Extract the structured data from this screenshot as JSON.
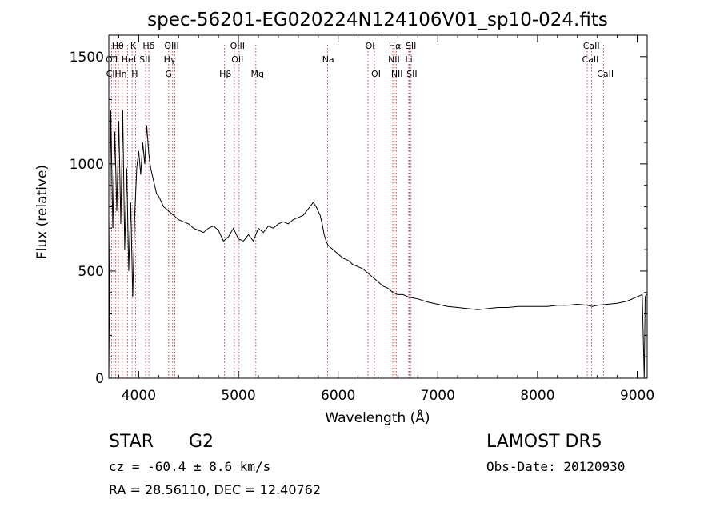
{
  "chart_data": {
    "type": "line",
    "title": "spec-56201-EG020224N124106V01_sp10-024.fits",
    "xlabel": "Wavelength (Å)",
    "ylabel": "Flux (relative)",
    "xlim": [
      3700,
      9100
    ],
    "ylim": [
      0,
      1600
    ],
    "xticks": [
      4000,
      5000,
      6000,
      7000,
      8000,
      9000
    ],
    "yticks": [
      0,
      500,
      1000,
      1500
    ],
    "grid": false,
    "series": [
      {
        "x": [
          3700,
          3720,
          3740,
          3760,
          3780,
          3800,
          3820,
          3840,
          3860,
          3880,
          3900,
          3920,
          3940,
          3960,
          3980,
          4000,
          4020,
          4040,
          4060,
          4080,
          4100,
          4120,
          4140,
          4160,
          4180,
          4200,
          4250,
          4300,
          4350,
          4400,
          4450,
          4500,
          4550,
          4600,
          4650,
          4700,
          4750,
          4800,
          4850,
          4900,
          4950,
          5000,
          5050,
          5100,
          5150,
          5200,
          5250,
          5300,
          5350,
          5400,
          5450,
          5500,
          5550,
          5600,
          5650,
          5700,
          5750,
          5780,
          5800,
          5820,
          5840,
          5860,
          5880,
          5900,
          5950,
          6000,
          6050,
          6100,
          6150,
          6200,
          6250,
          6300,
          6350,
          6400,
          6450,
          6500,
          6550,
          6600,
          6650,
          6700,
          6750,
          6800,
          6900,
          7000,
          7100,
          7200,
          7300,
          7400,
          7500,
          7600,
          7700,
          7800,
          7900,
          8000,
          8100,
          8200,
          8300,
          8400,
          8500,
          8550,
          8600,
          8700,
          8800,
          8900,
          9000,
          9050,
          9070,
          9080,
          9090,
          9100
        ],
        "values": [
          0,
          1250,
          700,
          1150,
          780,
          1200,
          720,
          1250,
          600,
          980,
          500,
          820,
          380,
          760,
          980,
          1060,
          950,
          1100,
          1000,
          1180,
          1050,
          980,
          940,
          900,
          860,
          850,
          800,
          780,
          760,
          740,
          730,
          720,
          700,
          690,
          680,
          700,
          710,
          690,
          640,
          660,
          700,
          650,
          640,
          670,
          640,
          700,
          680,
          710,
          700,
          720,
          730,
          720,
          740,
          750,
          760,
          790,
          820,
          800,
          780,
          760,
          720,
          670,
          640,
          620,
          600,
          580,
          560,
          550,
          530,
          520,
          510,
          490,
          470,
          450,
          430,
          420,
          400,
          390,
          390,
          380,
          375,
          370,
          355,
          345,
          335,
          330,
          325,
          320,
          325,
          330,
          330,
          335,
          335,
          335,
          335,
          340,
          340,
          345,
          340,
          335,
          340,
          345,
          350,
          360,
          380,
          390,
          0,
          380,
          390,
          390
        ]
      }
    ],
    "lines": [
      {
        "x": 3727,
        "labels": [
          "OII"
        ]
      },
      {
        "x": 3750,
        "labels": [
          "CII"
        ]
      },
      {
        "x": 3770,
        "labels": [
          "Hθ"
        ]
      },
      {
        "x": 3797,
        "labels": [
          "Hη"
        ]
      },
      {
        "x": 3835,
        "labels": [
          "Hη"
        ]
      },
      {
        "x": 3889,
        "labels": [
          "HeI"
        ]
      },
      {
        "x": 3934,
        "labels": [
          "K"
        ]
      },
      {
        "x": 3969,
        "labels": [
          "H"
        ]
      },
      {
        "x": 4069,
        "labels": [
          "SII"
        ]
      },
      {
        "x": 4102,
        "labels": [
          "Hδ"
        ]
      },
      {
        "x": 4300,
        "labels": [
          "G"
        ]
      },
      {
        "x": 4340,
        "labels": [
          "Hγ"
        ]
      },
      {
        "x": 4363,
        "labels": [
          "OIII"
        ]
      },
      {
        "x": 4861,
        "labels": [
          "Hβ"
        ]
      },
      {
        "x": 4959,
        "labels": [
          "OIII"
        ]
      },
      {
        "x": 5007,
        "labels": [
          "OIII"
        ]
      },
      {
        "x": 5175,
        "labels": [
          "Mg"
        ]
      },
      {
        "x": 5894,
        "labels": [
          "Na"
        ]
      },
      {
        "x": 6300,
        "labels": [
          "OI"
        ]
      },
      {
        "x": 6364,
        "labels": [
          "OI"
        ]
      },
      {
        "x": 6548,
        "labels": [
          "NII"
        ]
      },
      {
        "x": 6563,
        "labels": [
          "Hα"
        ]
      },
      {
        "x": 6583,
        "labels": [
          "NII"
        ]
      },
      {
        "x": 6708,
        "labels": [
          "Li"
        ]
      },
      {
        "x": 6716,
        "labels": [
          "SII"
        ]
      },
      {
        "x": 6731,
        "labels": [
          "SII"
        ]
      },
      {
        "x": 8498,
        "labels": [
          "CaII"
        ]
      },
      {
        "x": 8542,
        "labels": [
          "CaII"
        ]
      },
      {
        "x": 8662,
        "labels": [
          "CaII"
        ]
      }
    ],
    "line_labels": [
      {
        "text": "Hθ",
        "x": 3790,
        "row": 0
      },
      {
        "text": "K",
        "x": 3945,
        "row": 0
      },
      {
        "text": "Hδ",
        "x": 4100,
        "row": 0
      },
      {
        "text": "OIII",
        "x": 4330,
        "row": 0
      },
      {
        "text": "OIII",
        "x": 4990,
        "row": 0
      },
      {
        "text": "OI",
        "x": 6320,
        "row": 0
      },
      {
        "text": "Hα",
        "x": 6570,
        "row": 0
      },
      {
        "text": "SII",
        "x": 6730,
        "row": 0
      },
      {
        "text": "CaII",
        "x": 8540,
        "row": 0
      },
      {
        "text": "OII",
        "x": 3730,
        "row": 1
      },
      {
        "text": "HeI",
        "x": 3900,
        "row": 1
      },
      {
        "text": "SII",
        "x": 4060,
        "row": 1
      },
      {
        "text": "Hγ",
        "x": 4310,
        "row": 1
      },
      {
        "text": "OII",
        "x": 4990,
        "row": 1
      },
      {
        "text": "Na",
        "x": 5900,
        "row": 1
      },
      {
        "text": "NII",
        "x": 6560,
        "row": 1
      },
      {
        "text": "Li",
        "x": 6710,
        "row": 1
      },
      {
        "text": "CaII",
        "x": 8530,
        "row": 1
      },
      {
        "text": "CII",
        "x": 3730,
        "row": 2
      },
      {
        "text": "Hη",
        "x": 3820,
        "row": 2
      },
      {
        "text": "H",
        "x": 3960,
        "row": 2
      },
      {
        "text": "G",
        "x": 4300,
        "row": 2
      },
      {
        "text": "Hβ",
        "x": 4870,
        "row": 2
      },
      {
        "text": "Mg",
        "x": 5190,
        "row": 2
      },
      {
        "text": "OI",
        "x": 6380,
        "row": 2
      },
      {
        "text": "NII",
        "x": 6590,
        "row": 2
      },
      {
        "text": "SII",
        "x": 6740,
        "row": 2
      },
      {
        "text": "CaII",
        "x": 8680,
        "row": 2
      }
    ]
  },
  "info": {
    "class": "STAR",
    "subclass": "G2",
    "survey": "LAMOST DR5",
    "cz": "cz = -60.4 ± 8.6 km/s",
    "obs_date": "Obs-Date: 20120930",
    "radec": "RA =  28.56110, DEC =  12.40762"
  },
  "colors": {
    "spectrum": "#000000",
    "line_marker": "#b22222",
    "axes": "#000000"
  }
}
